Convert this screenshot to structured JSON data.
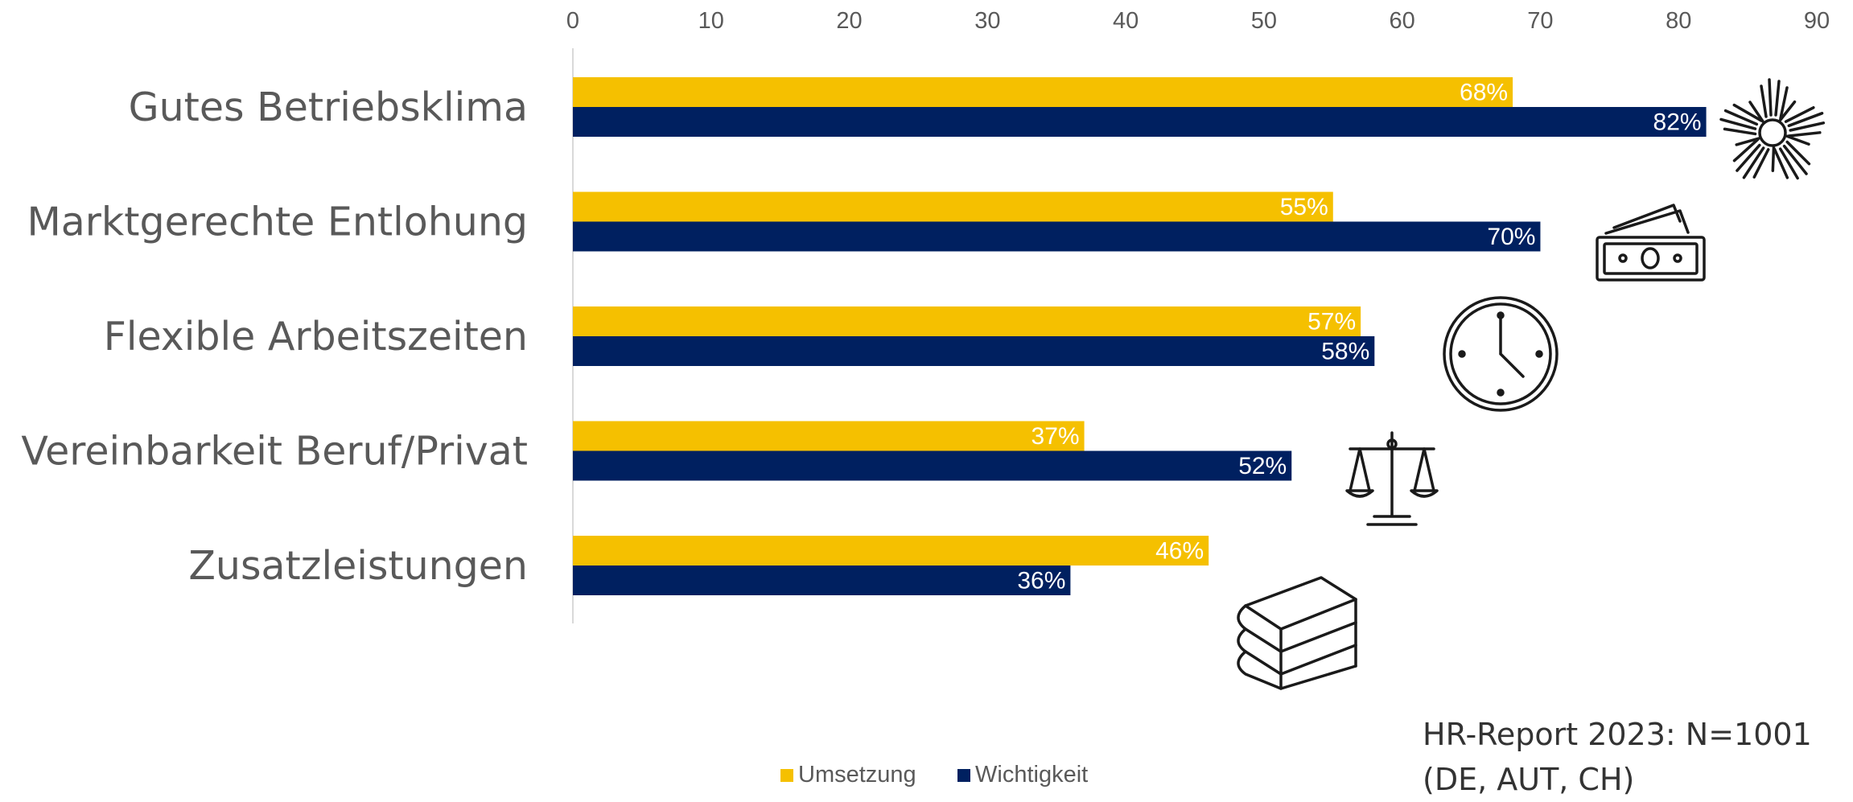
{
  "chart_data": {
    "type": "bar",
    "orientation": "horizontal",
    "categories": [
      "Gutes Betriebsklima",
      "Marktgerechte Entlohung",
      "Flexible Arbeitszeiten",
      "Vereinbarkeit Beruf/Privat",
      "Zusatzleistungen"
    ],
    "series": [
      {
        "name": "Umsetzung",
        "values": [
          68,
          55,
          57,
          37,
          46
        ],
        "labels": [
          "68%",
          "55%",
          "57%",
          "37%",
          "46%"
        ],
        "color": "#F5C000"
      },
      {
        "name": "Wichtigkeit",
        "values": [
          82,
          70,
          58,
          52,
          36
        ],
        "labels": [
          "82%",
          "70%",
          "58%",
          "52%",
          "36%"
        ],
        "color": "#002060"
      }
    ],
    "xlim": [
      0,
      90
    ],
    "xticks": [
      "0",
      "10",
      "20",
      "30",
      "40",
      "50",
      "60",
      "70",
      "80",
      "90"
    ],
    "axis_position": "top",
    "grid": false,
    "legend_position": "bottom-center"
  },
  "annotation": {
    "source_line1": "HR-Report 2023: N=1001",
    "source_line2": "(DE, AUT, CH)"
  },
  "icons": [
    "hands-circle-icon",
    "money-bill-icon",
    "clock-icon",
    "scales-icon",
    "books-icon"
  ]
}
